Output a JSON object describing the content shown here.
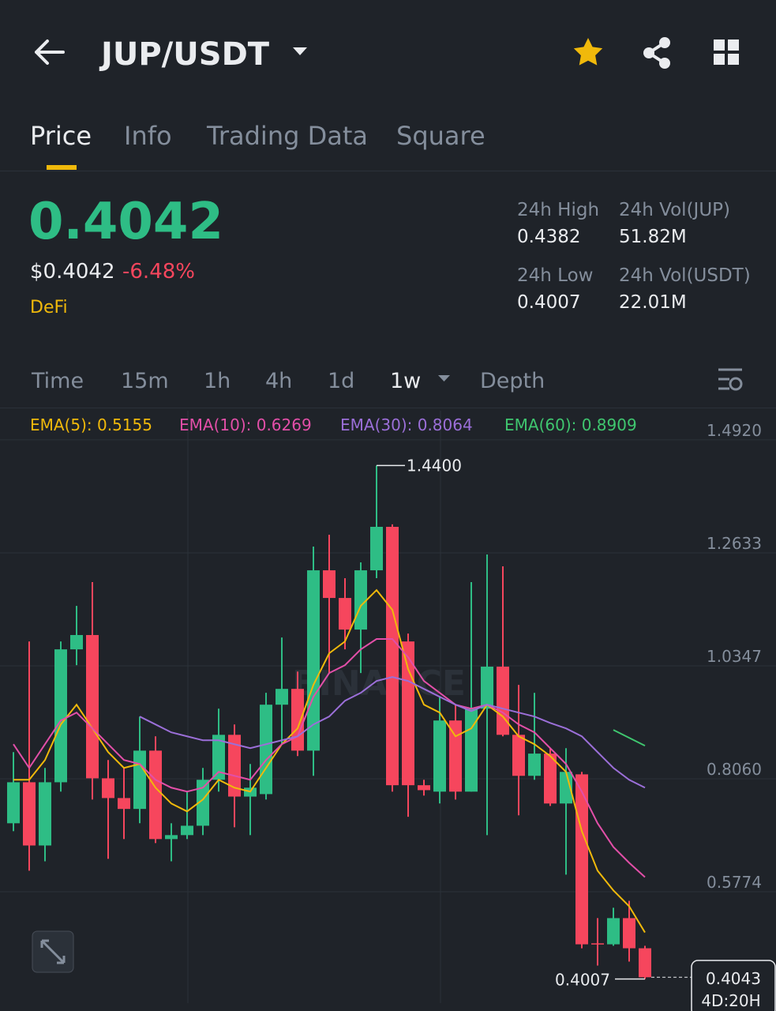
{
  "header": {
    "title": "JUP/USDT"
  },
  "tabs": [
    "Price",
    "Info",
    "Trading Data",
    "Square"
  ],
  "ticker": {
    "price": "0.4042",
    "fiat_price": "$0.4042",
    "change": "-6.48%",
    "tag": "DeFi",
    "stats": [
      {
        "label": "24h High",
        "value": "0.4382"
      },
      {
        "label": "24h Vol(JUP)",
        "value": "51.82M"
      },
      {
        "label": "24h Low",
        "value": "0.4007"
      },
      {
        "label": "24h Vol(USDT)",
        "value": "22.01M"
      }
    ]
  },
  "intervals": [
    "Time",
    "15m",
    "1h",
    "4h",
    "1d",
    "1w",
    "Depth"
  ],
  "chart_data": {
    "type": "candlestick",
    "watermark": "BINANCE",
    "up_color": "#2ebd85",
    "down_color": "#f6465d",
    "ylim": [
      0.352,
      1.551
    ],
    "yticks": [
      {
        "value": 1.492,
        "label": "1.4920"
      },
      {
        "value": 1.2633,
        "label": "1.2633"
      },
      {
        "value": 1.0347,
        "label": "1.0347"
      },
      {
        "value": 0.806,
        "label": "0.8060"
      },
      {
        "value": 0.5774,
        "label": "0.5774"
      }
    ],
    "open": [
      0.716,
      0.799,
      0.671,
      0.799,
      1.068,
      1.097,
      0.807,
      0.767,
      0.745,
      0.863,
      0.684,
      0.692,
      0.711,
      0.804,
      0.895,
      0.77,
      0.775,
      0.956,
      0.988,
      0.863,
      1.228,
      1.172,
      1.108,
      1.228,
      1.316,
      1.084,
      0.793,
      0.78,
      0.924,
      0.78,
      0.948,
      1.033,
      0.895,
      0.812,
      0.857,
      0.756,
      0.815,
      0.473,
      0.471,
      0.524,
      0.463
    ],
    "high": [
      0.86,
      1.084,
      0.828,
      1.084,
      1.156,
      1.204,
      0.844,
      0.828,
      0.932,
      0.892,
      0.716,
      0.78,
      0.828,
      0.948,
      0.916,
      0.836,
      0.98,
      1.092,
      1.023,
      1.276,
      1.3,
      1.212,
      1.244,
      1.44,
      1.321,
      1.1,
      0.804,
      0.972,
      0.956,
      1.204,
      1.26,
      1.236,
      0.996,
      0.98,
      0.868,
      0.868,
      0.82,
      0.524,
      0.545,
      0.559,
      0.468
    ],
    "low": [
      0.7,
      0.62,
      0.639,
      0.78,
      1.036,
      0.764,
      0.644,
      0.684,
      0.716,
      0.676,
      0.639,
      0.684,
      0.692,
      0.78,
      0.708,
      0.692,
      0.764,
      0.876,
      0.852,
      0.812,
      1.02,
      1.068,
      1.02,
      1.212,
      0.78,
      0.729,
      0.772,
      0.756,
      0.764,
      0.78,
      0.692,
      0.892,
      0.732,
      0.804,
      0.751,
      0.612,
      0.463,
      0.428,
      0.468,
      0.436,
      0.4007
    ],
    "close": [
      0.799,
      0.671,
      0.799,
      1.068,
      1.097,
      0.807,
      0.767,
      0.745,
      0.863,
      0.684,
      0.692,
      0.711,
      0.804,
      0.895,
      0.77,
      0.788,
      0.956,
      0.988,
      0.863,
      1.228,
      1.172,
      1.108,
      1.228,
      1.316,
      0.793,
      0.793,
      0.783,
      0.924,
      0.78,
      0.948,
      1.033,
      0.895,
      0.812,
      0.857,
      0.756,
      0.82,
      0.471,
      0.471,
      0.524,
      0.463,
      0.4043
    ],
    "series": [
      {
        "name": "EMA(5): 0.5155",
        "color": "#f0b90b",
        "values": [
          0.804,
          0.804,
          0.844,
          0.916,
          0.956,
          0.908,
          0.86,
          0.828,
          0.836,
          0.788,
          0.756,
          0.74,
          0.764,
          0.804,
          0.788,
          0.78,
          0.828,
          0.876,
          0.908,
          0.996,
          1.06,
          1.084,
          1.156,
          1.188,
          1.148,
          1.028,
          0.956,
          0.94,
          0.892,
          0.908,
          0.956,
          0.932,
          0.892,
          0.876,
          0.852,
          0.82,
          0.7,
          0.62,
          0.58,
          0.548,
          0.495
        ]
      },
      {
        "name": "EMA(10): 0.6269",
        "color": "#e24fa8",
        "values": [
          0.876,
          0.828,
          0.876,
          0.924,
          0.94,
          0.908,
          0.876,
          0.844,
          0.836,
          0.804,
          0.788,
          0.78,
          0.788,
          0.82,
          0.812,
          0.804,
          0.844,
          0.876,
          0.892,
          0.972,
          1.02,
          1.036,
          1.068,
          1.089,
          1.089,
          1.052,
          1.004,
          0.98,
          0.956,
          0.948,
          0.956,
          0.94,
          0.916,
          0.9,
          0.868,
          0.836,
          0.78,
          0.716,
          0.668,
          0.636,
          0.607
        ]
      },
      {
        "name": "EMA(30): 0.8064",
        "color": "#9b6fd8",
        "values": [
          null,
          null,
          null,
          null,
          null,
          null,
          null,
          null,
          0.932,
          0.916,
          0.9,
          0.892,
          0.884,
          0.884,
          0.876,
          0.868,
          0.876,
          0.884,
          0.892,
          0.916,
          0.932,
          0.964,
          0.98,
          1.004,
          1.012,
          1.004,
          0.988,
          0.972,
          0.956,
          0.943,
          0.956,
          0.948,
          0.94,
          0.932,
          0.919,
          0.908,
          0.892,
          0.86,
          0.828,
          0.804,
          0.788
        ]
      },
      {
        "name": "EMA(60): 0.8909",
        "color": "#3fc66f",
        "values": [
          null,
          null,
          null,
          null,
          null,
          null,
          null,
          null,
          null,
          null,
          null,
          null,
          null,
          null,
          null,
          null,
          null,
          null,
          null,
          null,
          null,
          null,
          null,
          null,
          null,
          null,
          null,
          null,
          null,
          null,
          null,
          null,
          null,
          null,
          null,
          null,
          null,
          null,
          0.905,
          0.889,
          0.873
        ]
      }
    ],
    "max_label": "1.4400",
    "min_label": "0.4007",
    "last_price_label": "0.4043",
    "countdown": "4D:20H"
  }
}
